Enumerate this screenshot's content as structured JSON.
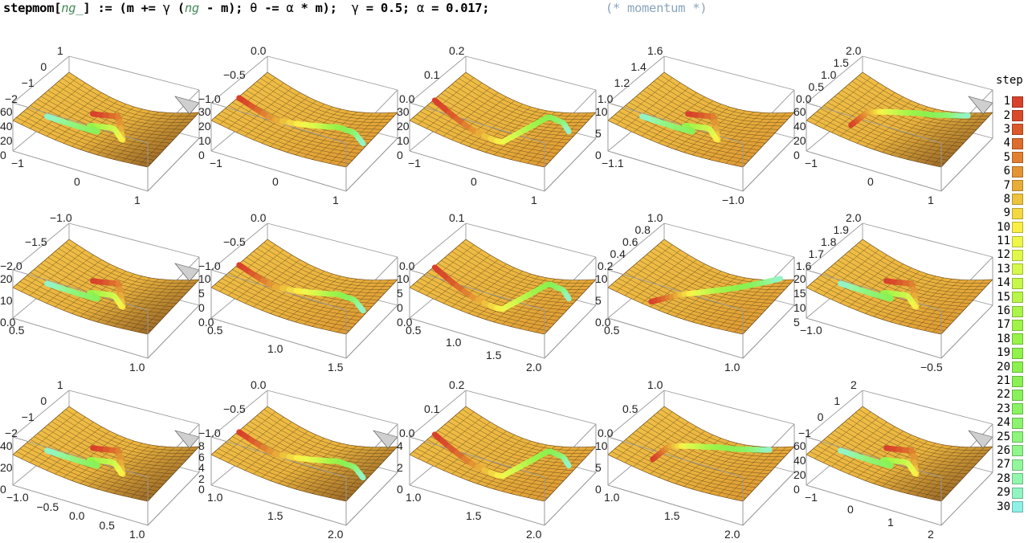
{
  "code": {
    "fn_name": "stepmom[",
    "arg": "ng_",
    "def": "] := (m += ",
    "gamma": "γ",
    "paren_open": " (",
    "ng": "ng",
    "minus_m": " - m); ",
    "theta": "θ",
    "update": " -= ",
    "alpha": "α",
    "times_m": " * m);  ",
    "gamma2": "γ",
    "gamma_val": " = 0.5; ",
    "alpha2": "α",
    "alpha_val": " = 0.017;",
    "comment": "(* momentum *)"
  },
  "legend": {
    "title": "step",
    "items": [
      {
        "step": "1",
        "color": "#d8412c"
      },
      {
        "step": "2",
        "color": "#d94a2b"
      },
      {
        "step": "3",
        "color": "#db5a2b"
      },
      {
        "step": "4",
        "color": "#de6c2d"
      },
      {
        "step": "5",
        "color": "#e08030"
      },
      {
        "step": "6",
        "color": "#e39534"
      },
      {
        "step": "7",
        "color": "#e8ac38"
      },
      {
        "step": "8",
        "color": "#edc23d"
      },
      {
        "step": "9",
        "color": "#f3d842"
      },
      {
        "step": "10",
        "color": "#f9ee45"
      },
      {
        "step": "11",
        "color": "#eef74a"
      },
      {
        "step": "12",
        "color": "#e1f84b"
      },
      {
        "step": "13",
        "color": "#d4f84c"
      },
      {
        "step": "14",
        "color": "#c6f74b"
      },
      {
        "step": "15",
        "color": "#b8f64b"
      },
      {
        "step": "16",
        "color": "#abf54a"
      },
      {
        "step": "17",
        "color": "#a0f449"
      },
      {
        "step": "18",
        "color": "#98f34a"
      },
      {
        "step": "19",
        "color": "#91f24b"
      },
      {
        "step": "20",
        "color": "#8cf14e"
      },
      {
        "step": "21",
        "color": "#8af152"
      },
      {
        "step": "22",
        "color": "#89f15a"
      },
      {
        "step": "23",
        "color": "#8af263"
      },
      {
        "step": "24",
        "color": "#8cf36e"
      },
      {
        "step": "25",
        "color": "#8ef47b"
      },
      {
        "step": "26",
        "color": "#90f58a"
      },
      {
        "step": "27",
        "color": "#92f69b"
      },
      {
        "step": "28",
        "color": "#93f6ae"
      },
      {
        "step": "29",
        "color": "#92f4c3"
      },
      {
        "step": "30",
        "color": "#8ff0e6"
      }
    ]
  },
  "chart_data": [
    {
      "type": "surface3d",
      "row": 1,
      "col": 1,
      "y_ticks": [
        "1",
        "0",
        "−1",
        "−2"
      ],
      "z_ticks": [
        "60",
        "40",
        "20",
        "0"
      ],
      "x_ticks": [
        "−1",
        "0",
        "1"
      ],
      "path": "zigzag",
      "clipped": true
    },
    {
      "type": "surface3d",
      "row": 1,
      "col": 2,
      "y_ticks": [
        "0.0",
        "−0.5",
        "−1.0"
      ],
      "z_ticks": [
        "30",
        "20",
        "10",
        "0"
      ],
      "x_ticks": [
        "−1",
        "0",
        "1"
      ],
      "path": "smooth"
    },
    {
      "type": "surface3d",
      "row": 1,
      "col": 3,
      "y_ticks": [
        "0.2",
        "0.1",
        "0.0"
      ],
      "z_ticks": [
        "30",
        "20",
        "10",
        "0"
      ],
      "x_ticks": [
        "−1",
        "0",
        "1"
      ],
      "path": "hook"
    },
    {
      "type": "surface3d",
      "row": 1,
      "col": 4,
      "y_ticks": [
        "1.6",
        "1.4",
        "1.2",
        "1.0"
      ],
      "z_ticks": [
        "10",
        "5",
        "0"
      ],
      "x_ticks": [
        "−1.1",
        "−1.0"
      ],
      "path": "zigzag"
    },
    {
      "type": "surface3d",
      "row": 1,
      "col": 5,
      "y_ticks": [
        "2.0",
        "1.5",
        "1.0",
        "0.5",
        "0.0"
      ],
      "z_ticks": [
        "60",
        "40",
        "20",
        "0"
      ],
      "x_ticks": [
        "−1",
        "0",
        "1"
      ],
      "path": "curve",
      "clipped": true
    },
    {
      "type": "surface3d",
      "row": 2,
      "col": 1,
      "y_ticks": [
        "−1.0",
        "−1.5",
        "−2.0"
      ],
      "z_ticks": [
        "20",
        "10",
        "0.0"
      ],
      "x_ticks": [
        "0.5",
        "1.0"
      ],
      "path": "zigzag",
      "clipped": true
    },
    {
      "type": "surface3d",
      "row": 2,
      "col": 2,
      "y_ticks": [
        "0.0",
        "−0.5",
        "−1.0"
      ],
      "z_ticks": [
        "10",
        "5",
        "0",
        "0.0"
      ],
      "x_ticks": [
        "0.5",
        "1.0",
        "1.5"
      ],
      "path": "smooth"
    },
    {
      "type": "surface3d",
      "row": 2,
      "col": 3,
      "y_ticks": [
        "0.1",
        "0.0"
      ],
      "z_ticks": [
        "10",
        "5",
        "0",
        "0.0"
      ],
      "x_ticks": [
        "0.5",
        "1.0",
        "1.5",
        "2.0"
      ],
      "path": "hook"
    },
    {
      "type": "surface3d",
      "row": 2,
      "col": 4,
      "y_ticks": [
        "1.0",
        "0.8",
        "0.6",
        "0.4",
        "0.2"
      ],
      "z_ticks": [
        "10",
        "5",
        "0.0"
      ],
      "x_ticks": [
        "0.5",
        "1.0"
      ],
      "path": "diagonal"
    },
    {
      "type": "surface3d",
      "row": 2,
      "col": 5,
      "y_ticks": [
        "2.0",
        "1.9",
        "1.8",
        "1.7",
        "1.6"
      ],
      "z_ticks": [
        "20",
        "15",
        "10",
        "5"
      ],
      "x_ticks": [
        "−1.0",
        "−0.5"
      ],
      "path": "zigzag"
    },
    {
      "type": "surface3d",
      "row": 3,
      "col": 1,
      "y_ticks": [
        "1",
        "0",
        "−1",
        "−2"
      ],
      "z_ticks": [
        "40",
        "20",
        "0"
      ],
      "x_ticks": [
        "−1.0",
        "−0.5",
        "0.0",
        "0.5",
        "1.0"
      ],
      "path": "zigzag",
      "clipped": true
    },
    {
      "type": "surface3d",
      "row": 3,
      "col": 2,
      "y_ticks": [
        "0.0",
        "−0.5",
        "−1.0"
      ],
      "z_ticks": [
        "8",
        "6",
        "4",
        "2",
        "0"
      ],
      "x_ticks": [
        "1.0",
        "1.5",
        "2.0"
      ],
      "path": "smooth",
      "clipped": true
    },
    {
      "type": "surface3d",
      "row": 3,
      "col": 3,
      "y_ticks": [
        "0.2",
        "0.1",
        "0.0"
      ],
      "z_ticks": [
        "4",
        "2",
        "0"
      ],
      "x_ticks": [
        "1.0",
        "1.5",
        "2.0"
      ],
      "path": "hook"
    },
    {
      "type": "surface3d",
      "row": 3,
      "col": 4,
      "y_ticks": [
        "1.0",
        "0.5",
        "0.0"
      ],
      "z_ticks": [
        "10",
        "5",
        "0"
      ],
      "x_ticks": [
        "1.0",
        "1.5",
        "2.0"
      ],
      "path": "curve"
    },
    {
      "type": "surface3d",
      "row": 3,
      "col": 5,
      "y_ticks": [
        "2",
        "1",
        "0",
        "−1"
      ],
      "z_ticks": [
        "60",
        "40",
        "20",
        "0"
      ],
      "x_ticks": [
        "−1",
        "0",
        "1",
        "2"
      ],
      "path": "zigzag",
      "clipped": true
    }
  ]
}
